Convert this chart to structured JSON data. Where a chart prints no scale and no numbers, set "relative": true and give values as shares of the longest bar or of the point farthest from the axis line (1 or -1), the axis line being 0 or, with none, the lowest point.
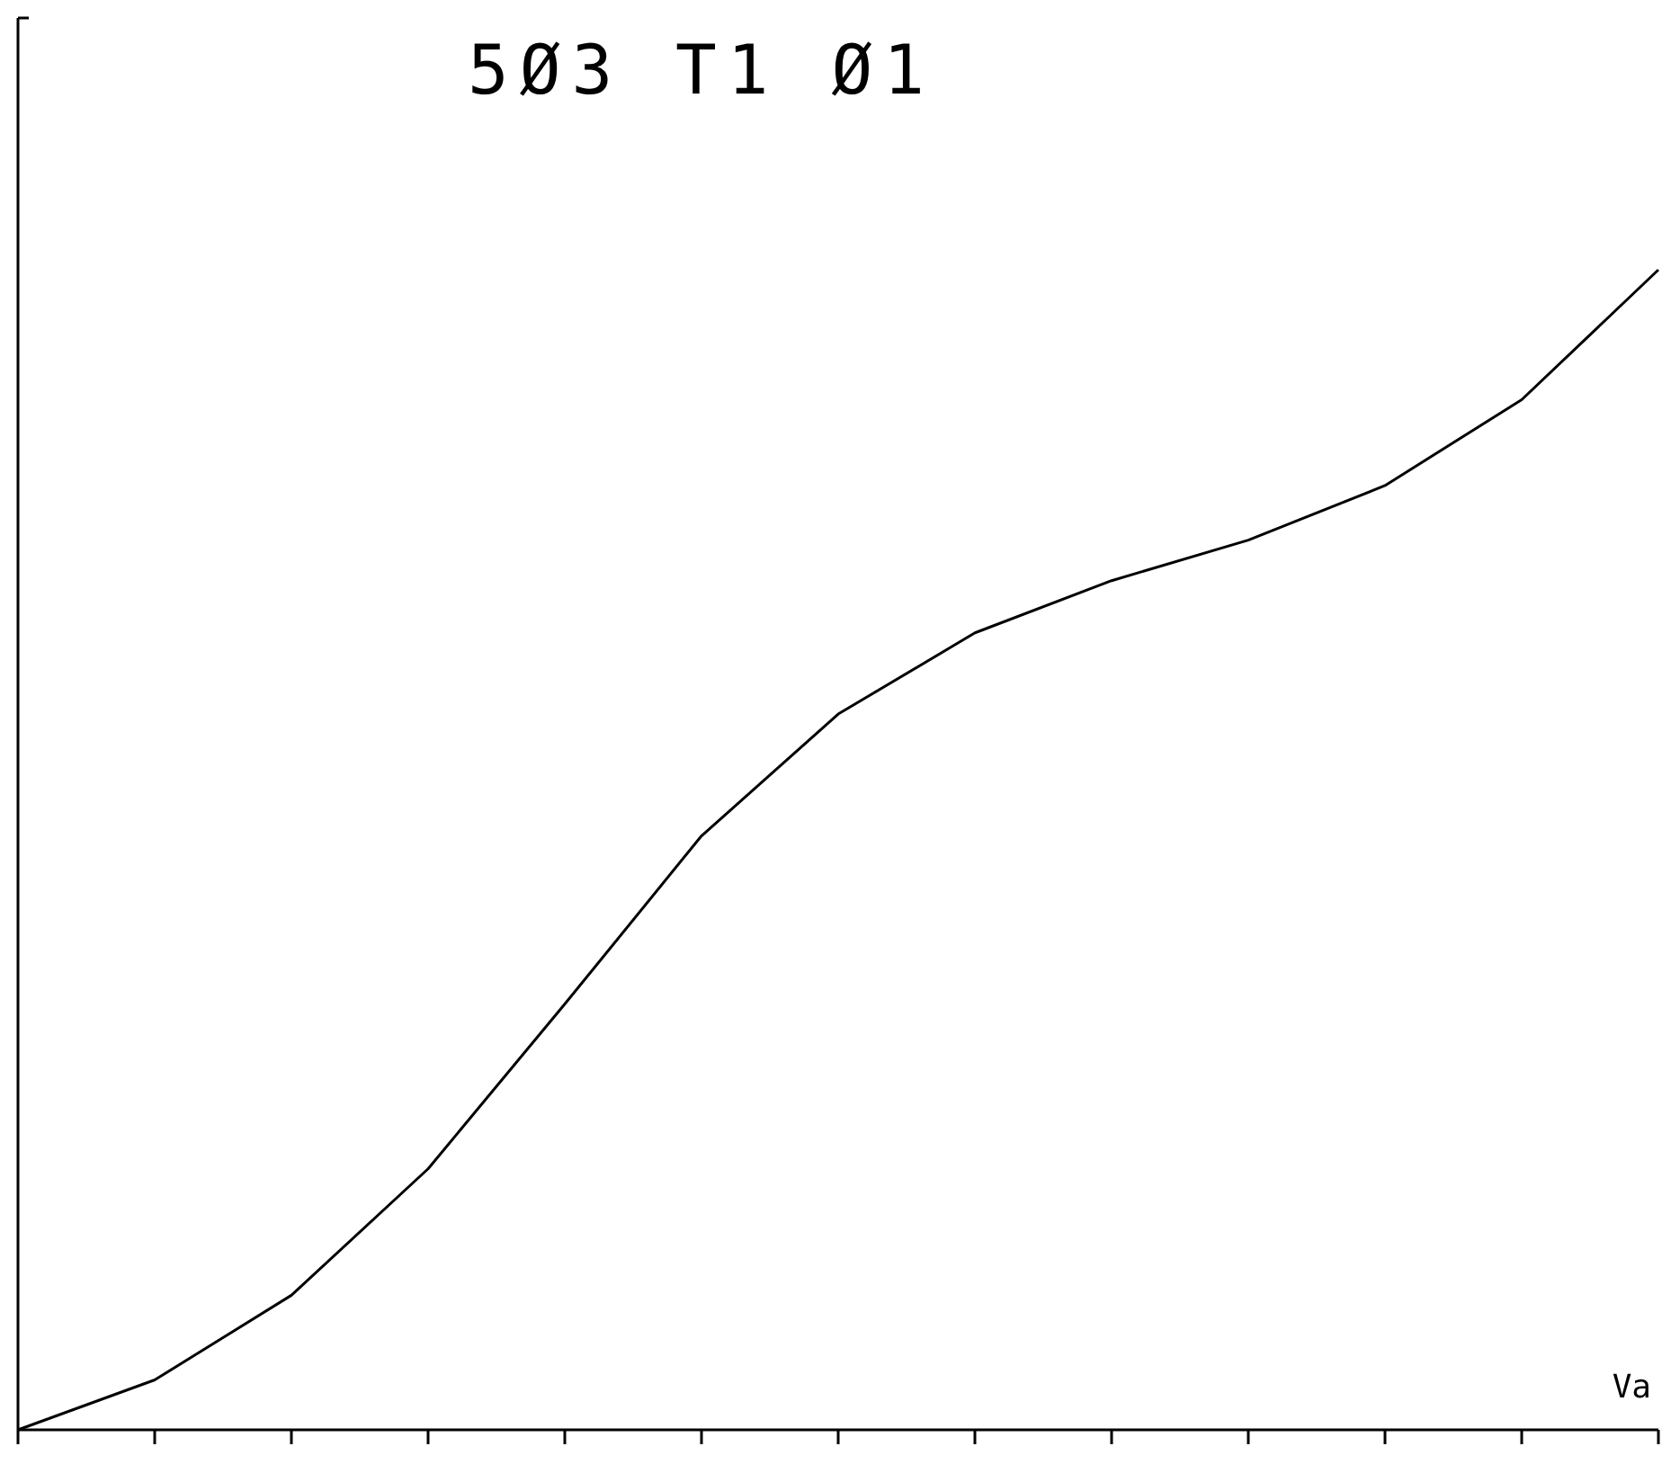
{
  "chart_data": {
    "type": "line",
    "title": "5Ø3 T1 Ø1",
    "xlabel": "Va",
    "relative": true,
    "grid": false,
    "marker": "none",
    "line_style": "solid",
    "categories": [
      null,
      null,
      null,
      null,
      null,
      null,
      null,
      null,
      null,
      null,
      null,
      null,
      null
    ],
    "series": [
      {
        "color": "#000000",
        "values": [
          0,
          0.043,
          0.116,
          0.225,
          0.367,
          0.512,
          0.617,
          0.687,
          0.732,
          0.767,
          0.814,
          0.888,
          1
        ]
      }
    ]
  }
}
